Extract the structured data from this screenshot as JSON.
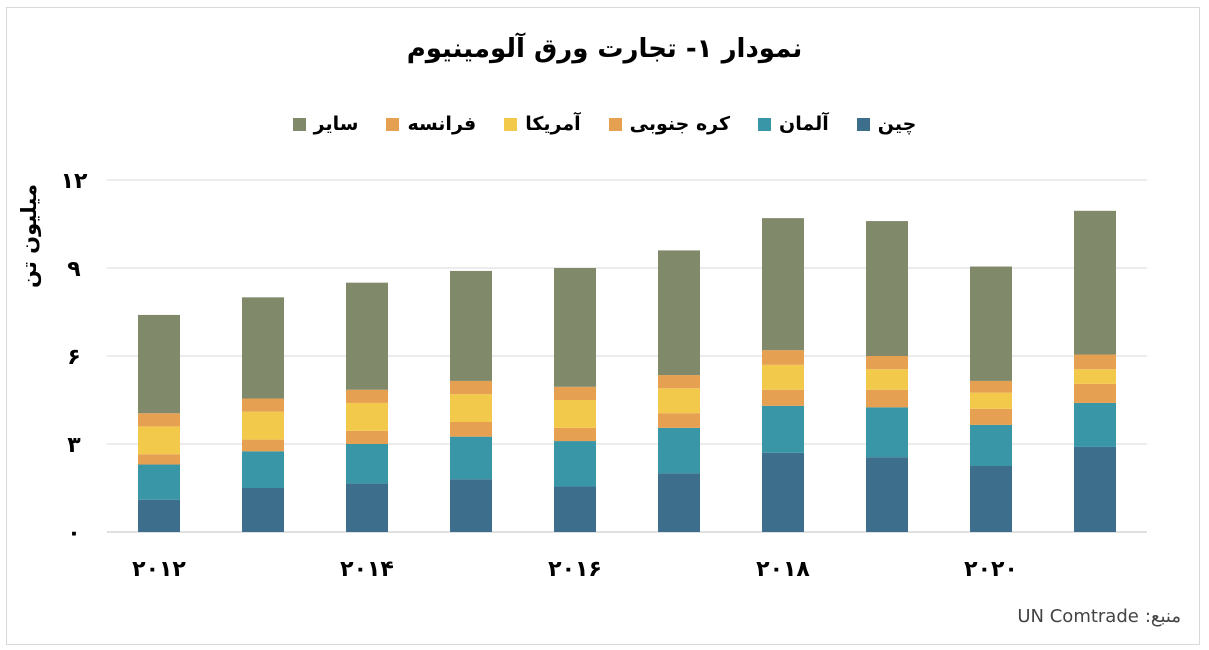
{
  "chart_data": {
    "type": "bar",
    "stacked": true,
    "title": "نمودار ۱- تجارت ورق آلومینیوم",
    "ylabel": "میلیون تن",
    "ylim": [
      0,
      12
    ],
    "yticks": [
      0,
      3,
      6,
      9,
      12
    ],
    "ytick_labels": [
      "۰",
      "۳",
      "۶",
      "۹",
      "۱۲"
    ],
    "categories": [
      "2012",
      "2013",
      "2014",
      "2015",
      "2016",
      "2017",
      "2018",
      "2019",
      "2020",
      "2021"
    ],
    "x_tick_labels": [
      "۲۰۱۲",
      "",
      "۲۰۱۴",
      "",
      "۲۰۱۶",
      "",
      "۲۰۱۸",
      "",
      "۲۰۲۰",
      ""
    ],
    "grid": true,
    "legend_position": "top",
    "series": [
      {
        "name": "چین",
        "color": "#3d6e8c",
        "values": [
          1.1,
          1.5,
          1.65,
          1.8,
          1.55,
          2.0,
          2.7,
          2.55,
          2.25,
          2.9
        ]
      },
      {
        "name": "آلمان",
        "color": "#3896a6",
        "values": [
          1.2,
          1.25,
          1.35,
          1.45,
          1.55,
          1.55,
          1.6,
          1.7,
          1.4,
          1.5
        ]
      },
      {
        "name": "کره جنوبی",
        "color": "#e6a052",
        "values": [
          0.35,
          0.4,
          0.45,
          0.5,
          0.45,
          0.5,
          0.55,
          0.6,
          0.55,
          0.65
        ]
      },
      {
        "name": "آمریکا",
        "color": "#f3c94b",
        "values": [
          0.95,
          0.95,
          0.95,
          0.95,
          0.95,
          0.85,
          0.85,
          0.7,
          0.55,
          0.5
        ]
      },
      {
        "name": "فرانسه",
        "color": "#e6a052",
        "values": [
          0.45,
          0.45,
          0.45,
          0.45,
          0.45,
          0.45,
          0.5,
          0.45,
          0.4,
          0.5
        ]
      },
      {
        "name": "سایر",
        "color": "#81896b",
        "values": [
          3.35,
          3.45,
          3.65,
          3.75,
          4.05,
          4.25,
          4.5,
          4.6,
          3.9,
          4.9
        ]
      }
    ]
  },
  "source": {
    "label": "منبع:",
    "value": "UN Comtrade"
  }
}
